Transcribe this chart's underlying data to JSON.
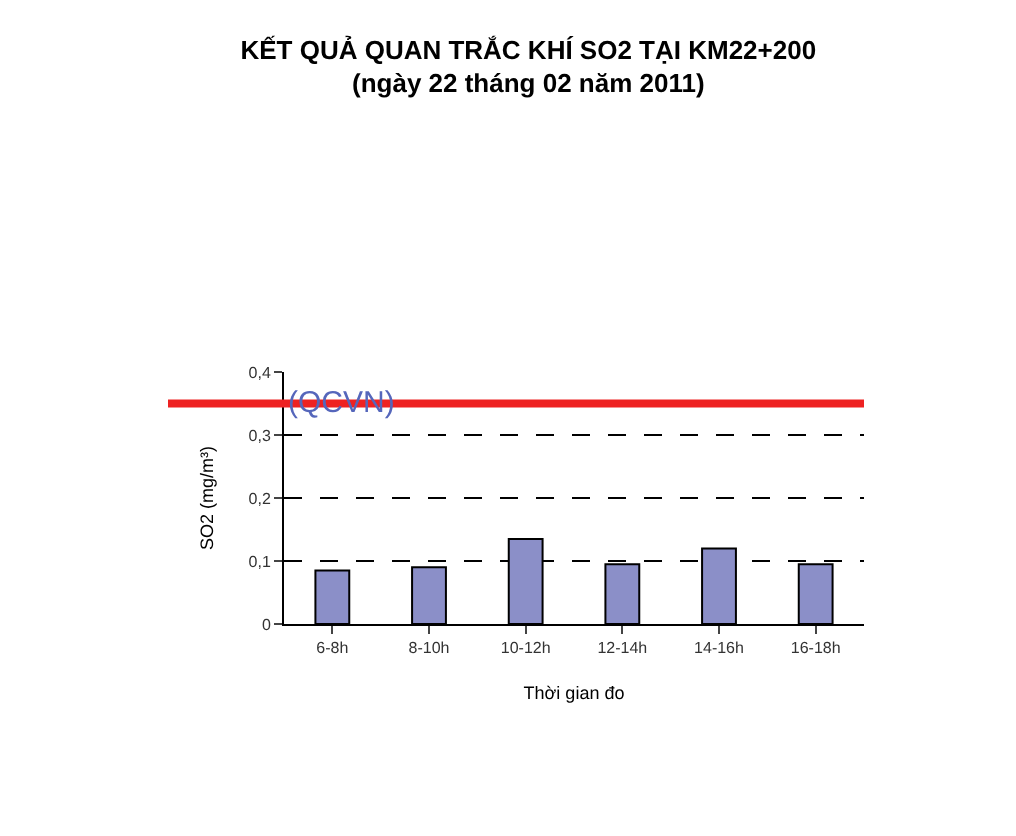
{
  "chart_data": {
    "type": "bar",
    "title": "KẾT QUẢ QUAN TRẮC KHÍ SO2 TẠI KM22+200\n(ngày 22 tháng 02 năm 2011)",
    "xlabel": "Thời gian đo",
    "ylabel": "SO2 (mg/m³)",
    "categories": [
      "6-8h",
      "8-10h",
      "10-12h",
      "12-14h",
      "14-16h",
      "16-18h"
    ],
    "values": [
      0.085,
      0.09,
      0.135,
      0.095,
      0.12,
      0.095
    ],
    "color": "#8b8fc8",
    "ylim": [
      0,
      0.4
    ],
    "yticks": [
      {
        "value": 0,
        "label": "0"
      },
      {
        "value": 0.1,
        "label": "0,1"
      },
      {
        "value": 0.2,
        "label": "0,2"
      },
      {
        "value": 0.3,
        "label": "0,3"
      },
      {
        "value": 0.4,
        "label": "0,4"
      }
    ],
    "grid": "y",
    "line_style": "dashed",
    "ref_lines": [
      {
        "axis": "y",
        "value": 0.35,
        "label": "(QCVN)",
        "color": "#ee2222"
      }
    ]
  }
}
